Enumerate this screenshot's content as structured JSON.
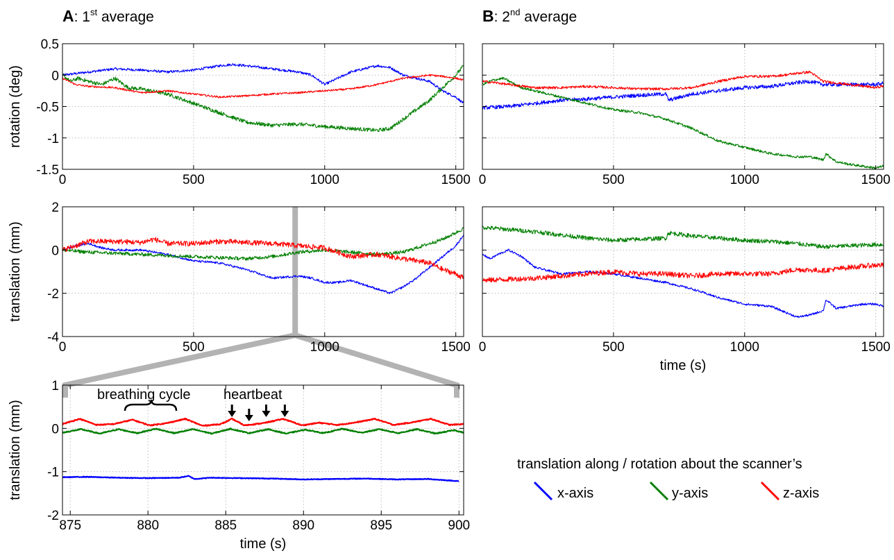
{
  "panel_titles": {
    "a": {
      "letter": "A",
      "prefix": ": 1",
      "sup": "st",
      "rest": " average"
    },
    "b": {
      "letter": "B",
      "prefix": ": 2",
      "sup": "nd",
      "rest": " average"
    }
  },
  "legend": {
    "title": "translation along / rotation about the scanner’s",
    "items": [
      {
        "label": "x-axis",
        "color": "#0000ff"
      },
      {
        "label": "y-axis",
        "color": "#007f00"
      },
      {
        "label": "z-axis",
        "color": "#ff0000"
      }
    ]
  },
  "annotations": {
    "breathing": "breathing cycle",
    "heartbeat": "heartbeat",
    "heartbeat_times": [
      885.4,
      886.5,
      887.6,
      888.8
    ]
  },
  "chart_data": [
    {
      "id": "A_rot",
      "type": "line",
      "ylabel": "rotation (deg)",
      "xlabel": "",
      "xlim": [
        0,
        1530
      ],
      "ylim": [
        -1.5,
        0.5
      ],
      "xticks": [
        0,
        500,
        1000,
        1500
      ],
      "yticks": [
        -1.5,
        -1,
        -0.5,
        0,
        0.5
      ],
      "ytick_labels": [
        "-1.5",
        "-1",
        "-0.5",
        "0",
        "0.5"
      ],
      "show_ytick_labels": true,
      "grid": true,
      "series": [
        {
          "name": "x-axis",
          "color": "#0000ff",
          "noise": 0.02,
          "x": [
            0,
            100,
            200,
            300,
            400,
            500,
            600,
            650,
            700,
            800,
            900,
            950,
            1000,
            1050,
            1100,
            1150,
            1200,
            1250,
            1300,
            1400,
            1450,
            1500,
            1530
          ],
          "y": [
            0,
            0.05,
            0.1,
            0.08,
            0.05,
            0.08,
            0.15,
            0.17,
            0.15,
            0.1,
            0.05,
            0,
            -0.15,
            -0.05,
            0.05,
            0.1,
            0.15,
            0.12,
            0,
            -0.1,
            -0.25,
            -0.35,
            -0.45
          ]
        },
        {
          "name": "y-axis",
          "color": "#007f00",
          "noise": 0.03,
          "x": [
            0,
            30,
            60,
            100,
            150,
            200,
            250,
            300,
            400,
            500,
            600,
            700,
            800,
            900,
            1000,
            1100,
            1200,
            1250,
            1300,
            1350,
            1400,
            1450,
            1500,
            1530
          ],
          "y": [
            0,
            -0.1,
            -0.05,
            -0.1,
            -0.15,
            -0.05,
            -0.2,
            -0.22,
            -0.3,
            -0.45,
            -0.6,
            -0.75,
            -0.8,
            -0.78,
            -0.82,
            -0.85,
            -0.88,
            -0.85,
            -0.7,
            -0.55,
            -0.4,
            -0.2,
            0,
            0.15
          ]
        },
        {
          "name": "z-axis",
          "color": "#ff0000",
          "noise": 0.015,
          "x": [
            0,
            50,
            100,
            200,
            300,
            400,
            500,
            600,
            700,
            800,
            900,
            1000,
            1100,
            1200,
            1250,
            1300,
            1400,
            1450,
            1500,
            1530
          ],
          "y": [
            -0.05,
            -0.15,
            -0.18,
            -0.2,
            -0.28,
            -0.25,
            -0.3,
            -0.35,
            -0.33,
            -0.3,
            -0.28,
            -0.25,
            -0.22,
            -0.15,
            -0.1,
            -0.05,
            0,
            -0.02,
            -0.05,
            -0.08
          ]
        }
      ]
    },
    {
      "id": "B_rot",
      "type": "line",
      "ylabel": "",
      "xlabel": "",
      "xlim": [
        0,
        1530
      ],
      "ylim": [
        -1.5,
        0.5
      ],
      "xticks": [
        0,
        500,
        1000,
        1500
      ],
      "yticks": [
        -1.5,
        -1,
        -0.5,
        0,
        0.5
      ],
      "ytick_labels": [
        "-1.5",
        "-1",
        "-0.5",
        "0",
        "0.5"
      ],
      "show_ytick_labels": false,
      "grid": true,
      "series": [
        {
          "name": "x-axis",
          "color": "#0000ff",
          "noise": 0.03,
          "x": [
            0,
            100,
            200,
            300,
            400,
            500,
            600,
            700,
            710,
            800,
            900,
            1000,
            1100,
            1200,
            1250,
            1300,
            1400,
            1500,
            1530
          ],
          "y": [
            -0.52,
            -0.5,
            -0.45,
            -0.4,
            -0.38,
            -0.35,
            -0.32,
            -0.3,
            -0.4,
            -0.3,
            -0.25,
            -0.2,
            -0.18,
            -0.12,
            -0.1,
            -0.15,
            -0.15,
            -0.15,
            -0.13
          ]
        },
        {
          "name": "y-axis",
          "color": "#007f00",
          "noise": 0.02,
          "x": [
            0,
            40,
            80,
            150,
            200,
            300,
            400,
            500,
            600,
            700,
            800,
            900,
            1000,
            1100,
            1200,
            1250,
            1300,
            1310,
            1350,
            1400,
            1450,
            1500,
            1530
          ],
          "y": [
            -0.15,
            -0.08,
            -0.05,
            -0.2,
            -0.25,
            -0.35,
            -0.45,
            -0.55,
            -0.6,
            -0.7,
            -0.85,
            -1.05,
            -1.15,
            -1.25,
            -1.3,
            -1.3,
            -1.35,
            -1.25,
            -1.38,
            -1.42,
            -1.45,
            -1.48,
            -1.45
          ]
        },
        {
          "name": "z-axis",
          "color": "#ff0000",
          "noise": 0.02,
          "x": [
            0,
            50,
            100,
            200,
            300,
            400,
            500,
            600,
            700,
            800,
            900,
            1000,
            1100,
            1150,
            1200,
            1250,
            1300,
            1400,
            1500,
            1530
          ],
          "y": [
            -0.1,
            -0.12,
            -0.15,
            -0.2,
            -0.2,
            -0.18,
            -0.2,
            -0.22,
            -0.22,
            -0.2,
            -0.1,
            -0.02,
            -0.02,
            0,
            0.03,
            0.05,
            -0.1,
            -0.15,
            -0.2,
            -0.17
          ]
        }
      ]
    },
    {
      "id": "A_trans",
      "type": "line",
      "ylabel": "translation (mm)",
      "xlabel": "",
      "xlim": [
        0,
        1530
      ],
      "ylim": [
        -4,
        2
      ],
      "xticks": [
        0,
        500,
        1000,
        1500
      ],
      "yticks": [
        -4,
        -2,
        0,
        2
      ],
      "ytick_labels": [
        "-4",
        "-2",
        "0",
        "2"
      ],
      "show_ytick_labels": true,
      "grid": true,
      "series": [
        {
          "name": "x-axis",
          "color": "#0000ff",
          "noise": 0.05,
          "x": [
            0,
            50,
            100,
            150,
            200,
            300,
            400,
            500,
            600,
            700,
            800,
            900,
            950,
            1000,
            1050,
            1100,
            1200,
            1250,
            1300,
            1350,
            1400,
            1450,
            1500,
            1530
          ],
          "y": [
            0,
            0.2,
            0.3,
            0.1,
            0,
            0,
            -0.2,
            -0.5,
            -0.6,
            -0.9,
            -1.3,
            -1.2,
            -1.3,
            -1.5,
            -1.5,
            -1.4,
            -1.8,
            -2,
            -1.7,
            -1.3,
            -0.8,
            -0.3,
            0.2,
            0.7
          ]
        },
        {
          "name": "y-axis",
          "color": "#007f00",
          "noise": 0.08,
          "x": [
            0,
            100,
            200,
            300,
            400,
            500,
            600,
            700,
            800,
            900,
            1000,
            1100,
            1200,
            1300,
            1400,
            1450,
            1500,
            1530
          ],
          "y": [
            0,
            -0.1,
            -0.15,
            -0.2,
            -0.25,
            -0.3,
            -0.35,
            -0.4,
            -0.3,
            -0.1,
            0,
            -0.1,
            -0.2,
            -0.1,
            0.3,
            0.5,
            0.8,
            1
          ]
        },
        {
          "name": "z-axis",
          "color": "#ff0000",
          "noise": 0.12,
          "x": [
            0,
            50,
            100,
            200,
            300,
            350,
            400,
            500,
            600,
            700,
            800,
            900,
            1000,
            1100,
            1200,
            1300,
            1400,
            1450,
            1500,
            1530
          ],
          "y": [
            0,
            0.2,
            0.4,
            0.4,
            0.35,
            0.5,
            0.3,
            0.3,
            0.4,
            0.35,
            0.3,
            0.2,
            0.1,
            -0.3,
            -0.2,
            -0.4,
            -0.6,
            -0.9,
            -1.1,
            -1.3
          ]
        }
      ]
    },
    {
      "id": "B_trans",
      "type": "line",
      "ylabel": "",
      "xlabel": "time (s)",
      "xlim": [
        0,
        1530
      ],
      "ylim": [
        -4,
        2
      ],
      "xticks": [
        0,
        500,
        1000,
        1500
      ],
      "yticks": [
        -4,
        -2,
        0,
        2
      ],
      "ytick_labels": [
        "-4",
        "-2",
        "0",
        "2"
      ],
      "show_ytick_labels": false,
      "grid": true,
      "series": [
        {
          "name": "x-axis",
          "color": "#0000ff",
          "noise": 0.05,
          "x": [
            0,
            30,
            60,
            100,
            150,
            200,
            300,
            400,
            500,
            600,
            700,
            800,
            900,
            1000,
            1100,
            1200,
            1250,
            1300,
            1310,
            1350,
            1400,
            1450,
            1500,
            1530
          ],
          "y": [
            -0.2,
            -0.4,
            -0.2,
            0,
            -0.3,
            -0.8,
            -1.1,
            -1,
            -1.1,
            -1.3,
            -1.5,
            -1.8,
            -2.2,
            -2.5,
            -2.6,
            -3.1,
            -3,
            -2.8,
            -2.3,
            -2.7,
            -2.6,
            -2.5,
            -2.5,
            -2.6
          ]
        },
        {
          "name": "y-axis",
          "color": "#007f00",
          "noise": 0.1,
          "x": [
            0,
            100,
            200,
            300,
            400,
            500,
            600,
            700,
            710,
            800,
            900,
            1000,
            1100,
            1200,
            1300,
            1400,
            1500,
            1530
          ],
          "y": [
            1.05,
            0.95,
            0.85,
            0.7,
            0.55,
            0.45,
            0.5,
            0.55,
            0.8,
            0.65,
            0.55,
            0.45,
            0.4,
            0.3,
            0.15,
            0.2,
            0.25,
            0.25
          ]
        },
        {
          "name": "z-axis",
          "color": "#ff0000",
          "noise": 0.12,
          "x": [
            0,
            100,
            200,
            300,
            400,
            500,
            600,
            700,
            800,
            900,
            1000,
            1100,
            1200,
            1300,
            1400,
            1500,
            1530
          ],
          "y": [
            -1.4,
            -1.35,
            -1.3,
            -1.2,
            -1.1,
            -1,
            -1.1,
            -1.1,
            -1.2,
            -1.1,
            -1.1,
            -1.1,
            -0.9,
            -0.95,
            -0.8,
            -0.7,
            -0.7
          ]
        }
      ]
    },
    {
      "id": "A_zoom",
      "type": "line",
      "ylabel": "translation (mm)",
      "xlabel": "time (s)",
      "xlim": [
        874.5,
        900.3
      ],
      "ylim": [
        -2,
        1
      ],
      "xticks": [
        875,
        880,
        885,
        890,
        895,
        900
      ],
      "yticks": [
        -2,
        -1,
        0,
        1
      ],
      "ytick_labels": [
        "-2",
        "-1",
        "0",
        "1"
      ],
      "show_ytick_labels": true,
      "grid": true,
      "series": [
        {
          "name": "x-axis",
          "color": "#0000ff",
          "noise": 0.008,
          "x": [
            874.5,
            876,
            878,
            880,
            882,
            882.6,
            883,
            884,
            886,
            888,
            890,
            892,
            894,
            896,
            898,
            900
          ],
          "y": [
            -1.13,
            -1.12,
            -1.14,
            -1.15,
            -1.14,
            -1.1,
            -1.17,
            -1.14,
            -1.15,
            -1.16,
            -1.18,
            -1.17,
            -1.16,
            -1.18,
            -1.17,
            -1.22
          ]
        },
        {
          "name": "y-axis",
          "color": "#007f00",
          "noise": 0.012,
          "x": [
            874.5,
            875.7,
            876.9,
            878.1,
            879.3,
            880.5,
            881.7,
            882.9,
            884.1,
            885.3,
            886.5,
            887.7,
            888.9,
            890.1,
            891.3,
            892.5,
            893.7,
            894.9,
            896.1,
            897.3,
            898.5,
            899.7,
            900.3
          ],
          "y": [
            -0.1,
            -0.02,
            -0.12,
            -0.02,
            -0.11,
            -0.01,
            -0.11,
            -0.02,
            -0.12,
            -0.01,
            -0.11,
            -0.02,
            -0.12,
            -0.03,
            -0.11,
            -0.01,
            -0.1,
            -0.02,
            -0.11,
            -0.02,
            -0.12,
            -0.04,
            -0.1
          ]
        },
        {
          "name": "z-axis",
          "color": "#ff0000",
          "noise": 0.012,
          "x": [
            874.5,
            875.6,
            876.7,
            877.8,
            879,
            880.1,
            881.2,
            882.4,
            883.5,
            884.7,
            885.4,
            886.2,
            887.4,
            888.7,
            889.9,
            891,
            892.2,
            893.4,
            894.6,
            895.8,
            897,
            898.2,
            899.4,
            900.3
          ],
          "y": [
            0.1,
            0.22,
            0.08,
            0.1,
            0.2,
            0.07,
            0.12,
            0.22,
            0.06,
            0.1,
            0.22,
            0.07,
            0.12,
            0.22,
            0.07,
            0.13,
            0.08,
            0.14,
            0.22,
            0.08,
            0.14,
            0.22,
            0.08,
            0.1
          ]
        }
      ]
    }
  ]
}
